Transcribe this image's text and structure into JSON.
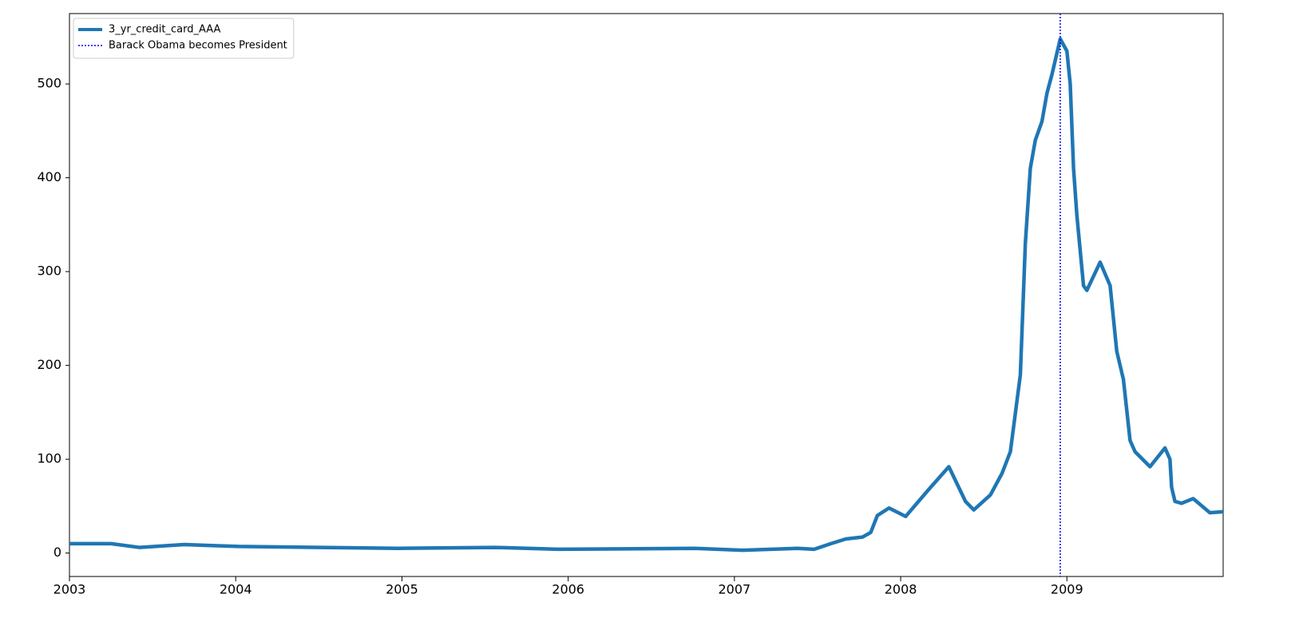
{
  "chart_data": {
    "type": "line",
    "x": [
      2003.0,
      2003.25,
      2003.42,
      2003.69,
      2004.02,
      2004.98,
      2005.56,
      2005.94,
      2006.76,
      2007.05,
      2007.38,
      2007.48,
      2007.58,
      2007.67,
      2007.77,
      2007.82,
      2007.86,
      2007.93,
      2008.03,
      2008.17,
      2008.29,
      2008.39,
      2008.44,
      2008.54,
      2008.61,
      2008.66,
      2008.72,
      2008.75,
      2008.78,
      2008.81,
      2008.85,
      2008.88,
      2008.91,
      2008.96,
      2009.0,
      2009.02,
      2009.04,
      2009.06,
      2009.1,
      2009.12,
      2009.2,
      2009.26,
      2009.3,
      2009.34,
      2009.38,
      2009.41,
      2009.5,
      2009.59,
      2009.62,
      2009.63,
      2009.65,
      2009.69,
      2009.76,
      2009.86,
      2009.94
    ],
    "series": [
      {
        "name": "3_yr_credit_card_AAA",
        "color": "#1f77b4",
        "values": [
          10,
          10,
          6,
          9,
          7,
          5,
          6,
          4,
          5,
          3,
          5,
          4,
          10,
          15,
          17,
          22,
          40,
          48,
          39,
          68,
          92,
          55,
          46,
          62,
          85,
          108,
          190,
          330,
          410,
          440,
          460,
          490,
          510,
          548,
          535,
          500,
          410,
          360,
          285,
          280,
          310,
          285,
          215,
          185,
          120,
          108,
          92,
          112,
          100,
          70,
          55,
          53,
          58,
          43,
          44
        ]
      }
    ],
    "vlines": [
      {
        "name": "Barack Obama becomes President",
        "x": 2008.96,
        "color": "#0000ff"
      }
    ],
    "xlim": [
      2003,
      2009.94
    ],
    "xticks": [
      2003,
      2004,
      2005,
      2006,
      2007,
      2008,
      2009
    ],
    "ylim": [
      -25,
      575
    ],
    "yticks": [
      0,
      100,
      200,
      300,
      400,
      500
    ],
    "legend": "upper left"
  }
}
